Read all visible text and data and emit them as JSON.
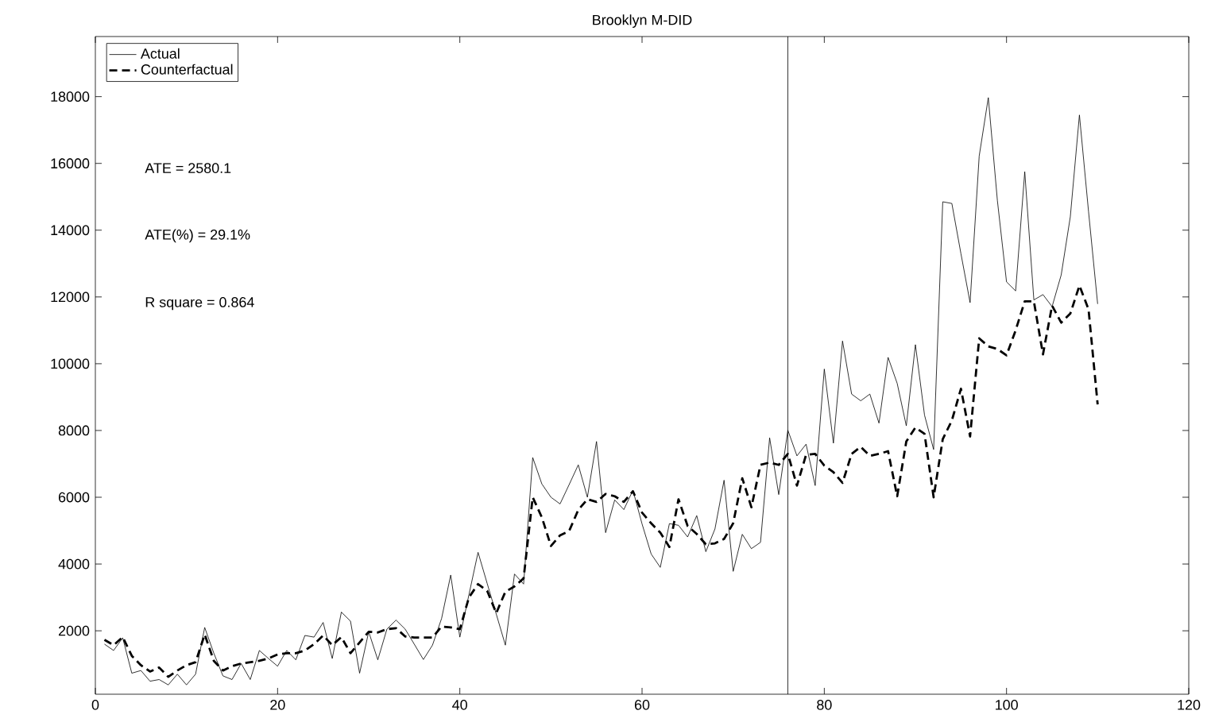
{
  "chart_data": {
    "type": "line",
    "title": "Brooklyn M-DID",
    "x": [
      1,
      2,
      3,
      4,
      5,
      6,
      7,
      8,
      9,
      10,
      11,
      12,
      13,
      14,
      15,
      16,
      17,
      18,
      19,
      20,
      21,
      22,
      23,
      24,
      25,
      26,
      27,
      28,
      29,
      30,
      31,
      32,
      33,
      34,
      35,
      36,
      37,
      38,
      39,
      40,
      41,
      42,
      43,
      44,
      45,
      46,
      47,
      48,
      49,
      50,
      51,
      52,
      53,
      54,
      55,
      56,
      57,
      58,
      59,
      60,
      61,
      62,
      63,
      64,
      65,
      66,
      67,
      68,
      69,
      70,
      71,
      72,
      73,
      74,
      75,
      76,
      77,
      78,
      79,
      80,
      81,
      82,
      83,
      84,
      85,
      86,
      87,
      88,
      89,
      90,
      91,
      92,
      93,
      94,
      95,
      96,
      97,
      98,
      99,
      100,
      101,
      102,
      103,
      104,
      105,
      106,
      107,
      108,
      109,
      110
    ],
    "series": [
      {
        "name": "Actual",
        "color": "#000000",
        "line_style": "solid",
        "values": [
          1600,
          1410,
          1790,
          730,
          810,
          490,
          540,
          380,
          700,
          380,
          700,
          2100,
          1330,
          650,
          540,
          1020,
          540,
          1410,
          1170,
          940,
          1410,
          1130,
          1860,
          1810,
          2250,
          1170,
          2560,
          2290,
          730,
          1970,
          1130,
          2050,
          2320,
          2050,
          1600,
          1140,
          1570,
          2370,
          3670,
          1810,
          3080,
          4350,
          3420,
          2500,
          1570,
          3700,
          3400,
          7190,
          6400,
          6000,
          5800,
          6380,
          6970,
          6000,
          7670,
          4940,
          5920,
          5630,
          6210,
          5200,
          4300,
          3900,
          5210,
          5160,
          4810,
          5450,
          4370,
          5050,
          6510,
          3780,
          4890,
          4460,
          4650,
          7780,
          6080,
          8010,
          7240,
          7590,
          6350,
          9840,
          7620,
          10680,
          9090,
          8890,
          9090,
          8220,
          10190,
          9410,
          8140,
          10570,
          8460,
          7430,
          14850,
          14800,
          13290,
          11830,
          16220,
          17970,
          14880,
          12450,
          12180,
          15750,
          11910,
          12070,
          11710,
          12660,
          14400,
          17450,
          14560,
          11790
        ]
      },
      {
        "name": "Counterfactual",
        "color": "#000000",
        "line_style": "dashed",
        "values": [
          1730,
          1570,
          1810,
          1250,
          970,
          780,
          900,
          620,
          810,
          970,
          1060,
          1890,
          1100,
          810,
          940,
          1020,
          1060,
          1100,
          1170,
          1290,
          1330,
          1330,
          1410,
          1600,
          1860,
          1570,
          1810,
          1330,
          1650,
          1970,
          1950,
          2050,
          2080,
          1830,
          1800,
          1800,
          1800,
          2130,
          2100,
          2050,
          3000,
          3400,
          3200,
          2530,
          3170,
          3330,
          3570,
          6000,
          5400,
          4540,
          4860,
          4990,
          5620,
          5940,
          5860,
          6100,
          6030,
          5860,
          6180,
          5540,
          5220,
          4940,
          4510,
          5940,
          5140,
          4900,
          4590,
          4620,
          4750,
          5220,
          6570,
          5700,
          6970,
          7040,
          6970,
          7300,
          6350,
          7270,
          7300,
          6950,
          6750,
          6430,
          7300,
          7510,
          7240,
          7300,
          7380,
          6030,
          7670,
          8090,
          7900,
          6000,
          7740,
          8300,
          9250,
          7820,
          10760,
          10520,
          10440,
          10250,
          11000,
          11870,
          11870,
          10280,
          11740,
          11230,
          11500,
          12340,
          11630,
          8780
        ]
      }
    ],
    "xlim": [
      0,
      120
    ],
    "xticks": [
      0,
      20,
      40,
      60,
      80,
      100,
      120
    ],
    "ylim": [
      100,
      19800
    ],
    "yticks": [
      2000,
      4000,
      6000,
      8000,
      10000,
      12000,
      14000,
      16000,
      18000
    ],
    "ref_lines": [
      {
        "axis": "x",
        "value": 76,
        "color": "#000000"
      }
    ],
    "annotations": [
      "ATE = 2580.1",
      "ATE(%) = 29.1%",
      "R square = 0.864"
    ],
    "legend": "top left",
    "grid": false
  }
}
